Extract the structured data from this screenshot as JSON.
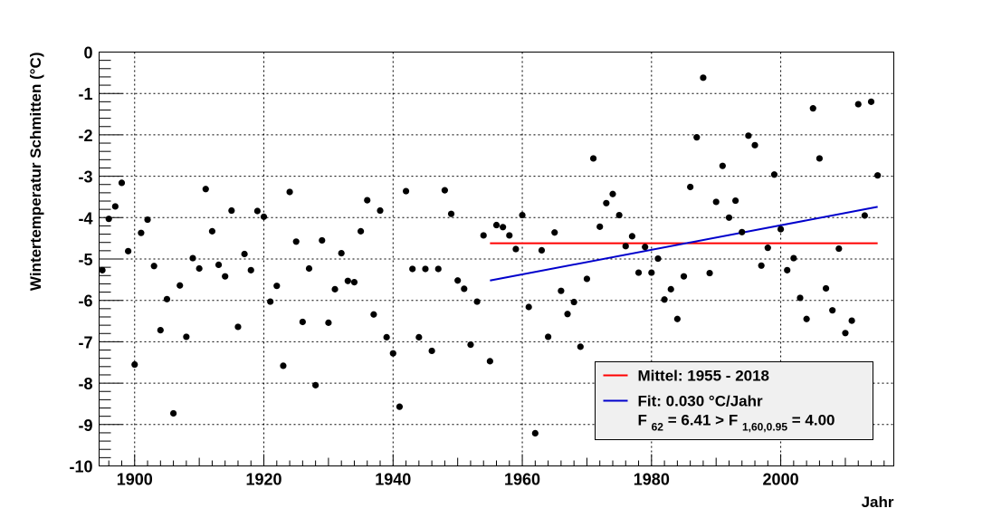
{
  "chart_data": {
    "type": "scatter",
    "title": "",
    "xlabel": "Jahr",
    "ylabel": "Wintertemperatur Schmitten (°C)",
    "xlim": [
      1894.5,
      2017.5
    ],
    "ylim": [
      -10,
      0
    ],
    "x_ticks": [
      "1900",
      "1920",
      "1940",
      "1960",
      "1980",
      "2000"
    ],
    "y_ticks": [
      "0",
      "-1",
      "-2",
      "-3",
      "-4",
      "-5",
      "-6",
      "-7",
      "-8",
      "-9",
      "-10"
    ],
    "grid": true,
    "legend_position": "bottom-right",
    "colors": {
      "points": "#000000",
      "mean": "#ff0000",
      "fit": "#0000cc",
      "legend_bg": "#f0f0f0"
    },
    "points": {
      "x": [
        1895,
        1896,
        1897,
        1898,
        1899,
        1900,
        1901,
        1902,
        1903,
        1904,
        1905,
        1906,
        1907,
        1908,
        1909,
        1910,
        1911,
        1912,
        1913,
        1914,
        1915,
        1916,
        1917,
        1918,
        1919,
        1920,
        1921,
        1922,
        1923,
        1924,
        1925,
        1926,
        1927,
        1928,
        1929,
        1930,
        1931,
        1932,
        1933,
        1934,
        1935,
        1936,
        1937,
        1938,
        1939,
        1940,
        1941,
        1942,
        1943,
        1944,
        1945,
        1946,
        1947,
        1948,
        1949,
        1950,
        1951,
        1952,
        1953,
        1954,
        1955,
        1956,
        1957,
        1958,
        1959,
        1960,
        1961,
        1962,
        1963,
        1964,
        1965,
        1966,
        1967,
        1968,
        1969,
        1970,
        1971,
        1972,
        1973,
        1974,
        1975,
        1976,
        1977,
        1978,
        1979,
        1980,
        1981,
        1982,
        1983,
        1984,
        1985,
        1986,
        1987,
        1988,
        1989,
        1990,
        1991,
        1992,
        1993,
        1994,
        1995,
        1996,
        1997,
        1998,
        1999,
        2000,
        2001,
        2002,
        2003,
        2004,
        2005,
        2006,
        2007,
        2008,
        2009,
        2010,
        2011,
        2012,
        2013,
        2014,
        2015
      ],
      "y": [
        -5.27,
        -4.03,
        -3.73,
        -3.16,
        -4.81,
        -7.55,
        -4.37,
        -4.05,
        -5.17,
        -6.72,
        -5.97,
        -8.73,
        -5.64,
        -6.88,
        -4.98,
        -5.23,
        -3.31,
        -4.33,
        -5.14,
        -5.42,
        -3.83,
        -6.64,
        -4.88,
        -5.27,
        -3.84,
        -3.98,
        -6.03,
        -5.65,
        -7.58,
        -3.38,
        -4.58,
        -6.52,
        -5.23,
        -8.05,
        -4.55,
        -6.54,
        -5.73,
        -4.86,
        -5.53,
        -5.56,
        -4.33,
        -3.58,
        -6.34,
        -3.83,
        -6.89,
        -7.28,
        -8.57,
        -3.36,
        -5.24,
        -6.89,
        -5.24,
        -7.22,
        -5.24,
        -3.34,
        -3.91,
        -5.52,
        -5.72,
        -7.07,
        -6.03,
        -4.43,
        -7.47,
        -4.18,
        -4.23,
        -4.43,
        -4.76,
        -3.94,
        -6.16,
        -9.21,
        -4.79,
        -6.88,
        -4.36,
        -5.77,
        -6.33,
        -6.04,
        -7.12,
        -5.48,
        -2.57,
        -4.22,
        -3.65,
        -3.43,
        -3.94,
        -4.69,
        -4.45,
        -5.33,
        -4.71,
        -5.33,
        -4.99,
        -5.98,
        -5.73,
        -6.45,
        -5.42,
        -3.26,
        -2.06,
        -0.62,
        -5.34,
        -3.62,
        -2.75,
        -4.0,
        -3.59,
        -4.35,
        -2.02,
        -2.25,
        -5.16,
        -4.73,
        -2.96,
        -4.28,
        -5.27,
        -4.98,
        -5.94,
        -6.45,
        -1.36,
        -2.57,
        -5.71,
        -6.24,
        -4.75,
        -6.79,
        -6.49,
        -1.26,
        -3.95,
        -1.2,
        -2.98
      ]
    },
    "mean_line": {
      "label": "Mittel: 1955 - 2018",
      "x": [
        1955,
        2018
      ],
      "y": -4.62
    },
    "fit_line": {
      "label": "Fit: 0.030 °C/Jahr",
      "x": [
        1955,
        2015
      ],
      "y": [
        -5.52,
        -3.74
      ]
    },
    "legend": {
      "mean_label": "Mittel: 1955 - 2018",
      "fit_label": "Fit: 0.030 °C/Jahr",
      "ftest_f": "F",
      "ftest_df": "62",
      "ftest_mid": " = 6.41 >  F",
      "ftest_crit_sub": "1,60,0.95",
      "ftest_end": " = 4.00"
    }
  }
}
